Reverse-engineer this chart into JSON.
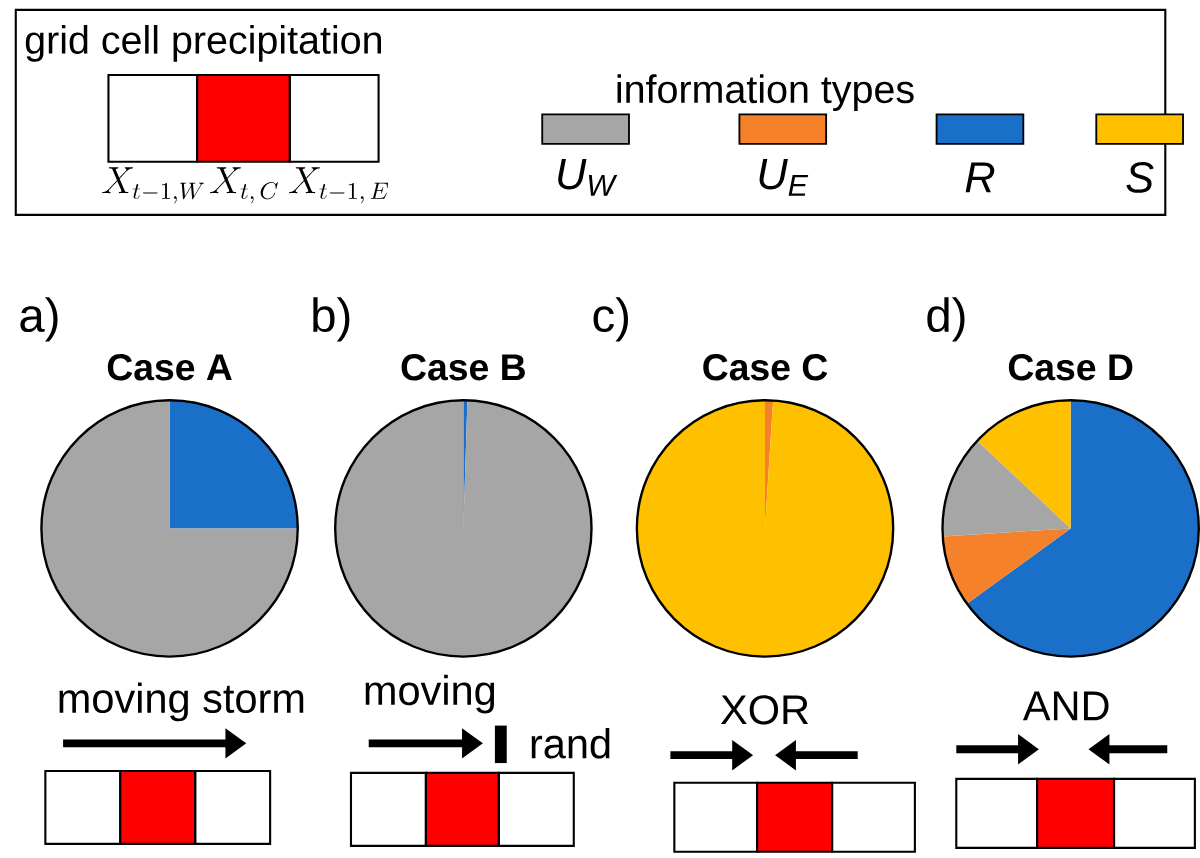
{
  "chart_data": [
    {
      "type": "pie",
      "title": "Case A",
      "legend": "top",
      "legend_title": "information types",
      "categories": [
        "R",
        "U$_{E}$",
        "U$_{W}$",
        "S"
      ],
      "values": [
        25,
        0,
        75,
        0
      ],
      "colors": [
        "#1a70c8",
        "#f5812a",
        "#a6a6a6",
        "#ffc000"
      ],
      "annotations": [
        "a)",
        "moving storm",
        "grid cell precipitation",
        "X_{t-1,W}",
        "X_{t,\\,C}",
        "X_{t-1,\\,E}"
      ]
    },
    {
      "type": "pie",
      "title": "Case B",
      "categories": [
        null,
        null,
        null,
        null
      ],
      "values": [
        0.5,
        0,
        99.5,
        0
      ],
      "colors": [
        "#1a70c8",
        "#f5812a",
        "#a6a6a6",
        "#ffc000"
      ],
      "annotations": [
        "b)",
        "moving",
        "rand"
      ]
    },
    {
      "type": "pie",
      "title": "Case C",
      "categories": [
        null,
        null,
        null,
        null
      ],
      "values": [
        0,
        1,
        0,
        99
      ],
      "colors": [
        "#1a70c8",
        "#f5812a",
        "#a6a6a6",
        "#ffc000"
      ],
      "annotations": [
        "c)",
        "XOR"
      ]
    },
    {
      "type": "pie",
      "title": "Case D",
      "categories": [
        null,
        null,
        null,
        null
      ],
      "values": [
        65,
        9,
        13,
        13
      ],
      "colors": [
        "#1a70c8",
        "#f5812a",
        "#a6a6a6",
        "#ffc000"
      ],
      "annotations": [
        "d)",
        "AND"
      ]
    }
  ]
}
